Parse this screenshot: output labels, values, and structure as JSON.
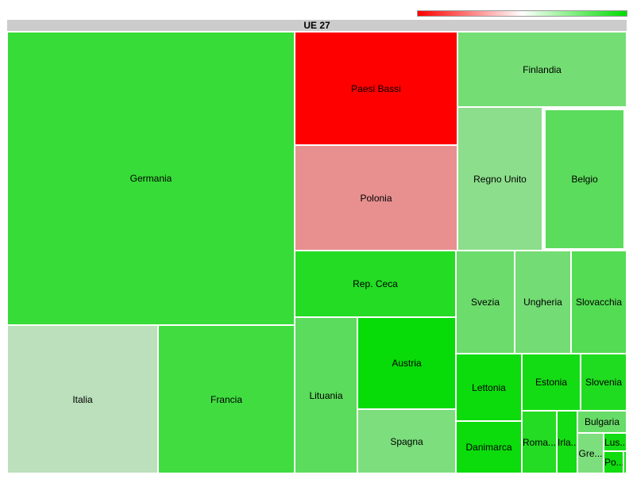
{
  "chart_data": {
    "type": "treemap",
    "title": "UE 27",
    "color_scale": [
      "#ff0000",
      "#ffffff",
      "#00dd00"
    ],
    "items": [
      {
        "label": "Germania",
        "color": "#38dc38"
      },
      {
        "label": "Paesi Bassi",
        "color": "#ff0000"
      },
      {
        "label": "Finlandia",
        "color": "#74de74"
      },
      {
        "label": "Polonia",
        "color": "#e89090"
      },
      {
        "label": "Regno Unito",
        "color": "#8cde8c"
      },
      {
        "label": "Belgio",
        "color": "#5cdc5c"
      },
      {
        "label": "Italia",
        "color": "#bcdfbc"
      },
      {
        "label": "Francia",
        "color": "#40dc40"
      },
      {
        "label": "Rep. Ceca",
        "color": "#24dc24"
      },
      {
        "label": "Svezia",
        "color": "#6cdc6c"
      },
      {
        "label": "Ungheria",
        "color": "#74dc74"
      },
      {
        "label": "Slovacchia",
        "color": "#54dc54"
      },
      {
        "label": "Lituania",
        "color": "#5cdc5c"
      },
      {
        "label": "Austria",
        "color": "#08dc08"
      },
      {
        "label": "Spagna",
        "color": "#7cde7c"
      },
      {
        "label": "Lettonia",
        "color": "#0cdc0c"
      },
      {
        "label": "Estonia",
        "color": "#14dc14"
      },
      {
        "label": "Slovenia",
        "color": "#20dc20"
      },
      {
        "label": "Danimarca",
        "color": "#0cdc0c"
      },
      {
        "label": "Roma...",
        "color": "#24dc24"
      },
      {
        "label": "Irla...",
        "color": "#14dc14"
      },
      {
        "label": "Bulgaria",
        "color": "#68dc68"
      },
      {
        "label": "Gre...",
        "color": "#7cde7c"
      },
      {
        "label": "Lus...",
        "color": "#14dc14"
      },
      {
        "label": "Po...",
        "color": "#10dc10"
      },
      {
        "label": "",
        "color": "#14dc14"
      }
    ],
    "selected": "Belgio"
  }
}
